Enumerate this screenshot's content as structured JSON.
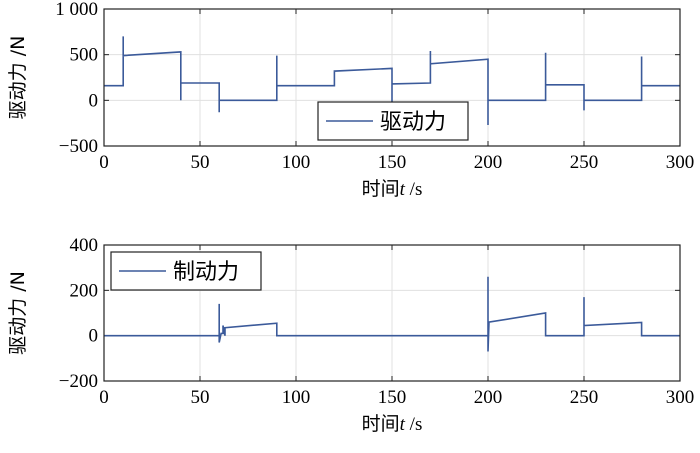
{
  "chart_data": [
    {
      "type": "line",
      "ylabel": "驱动力 /N",
      "xlabel_prefix": "时间",
      "xlabel_var": "t",
      "xlabel_unit": " /s",
      "xlim": [
        0,
        300
      ],
      "ylim": [
        -500,
        1000
      ],
      "xticks": [
        0,
        50,
        100,
        150,
        200,
        250,
        300
      ],
      "xtick_labels": [
        "0",
        "50",
        "100",
        "150",
        "200",
        "250",
        "300"
      ],
      "yticks": [
        -500,
        0,
        500,
        1000
      ],
      "ytick_labels": [
        "−500",
        "0",
        "500",
        "1 000"
      ],
      "grid": true,
      "legend": {
        "label": "驱动力",
        "placement": "bottom-center"
      },
      "series": [
        {
          "name": "驱动力",
          "color": "#3b5a9a",
          "x": [
            0,
            10,
            10,
            10,
            40,
            40,
            40,
            60,
            60,
            60,
            90,
            90,
            90,
            120,
            120,
            120,
            150,
            150,
            150,
            170,
            170,
            170,
            200,
            200,
            200,
            230,
            230,
            230,
            250,
            250,
            250,
            280,
            280,
            280,
            300
          ],
          "y": [
            160,
            160,
            700,
            490,
            530,
            0,
            190,
            190,
            -130,
            0,
            0,
            490,
            160,
            160,
            330,
            320,
            350,
            -100,
            180,
            190,
            540,
            400,
            450,
            -270,
            0,
            0,
            520,
            170,
            170,
            -110,
            0,
            0,
            480,
            160,
            160
          ]
        }
      ]
    },
    {
      "type": "line",
      "ylabel": "驱动力 /N",
      "xlabel_prefix": "时间",
      "xlabel_var": "t",
      "xlabel_unit": " /s",
      "xlim": [
        0,
        300
      ],
      "ylim": [
        -200,
        400
      ],
      "xticks": [
        0,
        50,
        100,
        150,
        200,
        250,
        300
      ],
      "xtick_labels": [
        "0",
        "50",
        "100",
        "150",
        "200",
        "250",
        "300"
      ],
      "yticks": [
        -200,
        0,
        200,
        400
      ],
      "ytick_labels": [
        "−200",
        "0",
        "200",
        "400"
      ],
      "grid": true,
      "legend": {
        "label": "制动力",
        "placement": "top-left"
      },
      "series": [
        {
          "name": "制动力",
          "color": "#3b5a9a",
          "x": [
            0,
            60,
            60,
            60,
            61,
            62,
            62,
            63,
            63,
            90,
            90,
            200,
            200,
            200,
            200.5,
            230,
            230,
            250,
            250,
            250,
            280,
            280,
            300
          ],
          "y": [
            0,
            0,
            140,
            -30,
            10,
            10,
            45,
            0,
            35,
            55,
            0,
            0,
            260,
            -70,
            60,
            100,
            0,
            0,
            170,
            45,
            58,
            0,
            0
          ]
        }
      ]
    }
  ]
}
